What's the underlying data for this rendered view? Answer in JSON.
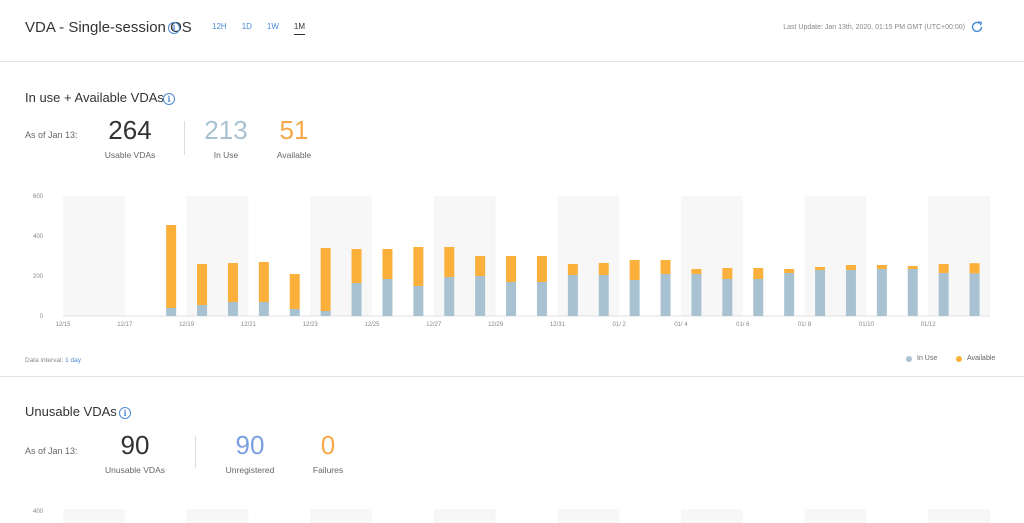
{
  "header": {
    "title": "VDA - Single-session OS",
    "tabs": [
      {
        "label": "12H",
        "active": false
      },
      {
        "label": "1D",
        "active": false
      },
      {
        "label": "1W",
        "active": false
      },
      {
        "label": "1M",
        "active": true
      }
    ],
    "last_update": "Last Update: Jan 13th, 2020, 01:15 PM GMT (UTC+00:00)"
  },
  "section1": {
    "title": "In use + Available VDAs",
    "as_of": "As of Jan 13:",
    "metrics": [
      {
        "value": "264",
        "label": "Usable VDAs",
        "color": "#333333"
      },
      {
        "value": "213",
        "label": "In Use",
        "color": "#a9c2d2"
      },
      {
        "value": "51",
        "label": "Available",
        "color": "#f5a94a"
      }
    ],
    "data_interval_label": "Data interval:",
    "data_interval_value": "1 day",
    "legend": [
      {
        "label": "In Use",
        "color": "#a9c2d2"
      },
      {
        "label": "Available",
        "color": "#fbb03b"
      }
    ]
  },
  "section2": {
    "title": "Unusable VDAs",
    "as_of": "As of Jan 13:",
    "metrics": [
      {
        "value": "90",
        "label": "Unusable VDAs",
        "color": "#333333"
      },
      {
        "value": "90",
        "label": "Unregistered",
        "color": "#7b9fe0"
      },
      {
        "value": "0",
        "label": "Failures",
        "color": "#f5a94a"
      }
    ],
    "y_tick_top": "400"
  },
  "chart_data": {
    "type": "bar",
    "stacked": true,
    "categories": [
      "12/15",
      "12/16",
      "12/17",
      "12/18",
      "12/19",
      "12/20",
      "12/21",
      "12/22",
      "12/23",
      "12/24",
      "12/25",
      "12/26",
      "12/27",
      "12/28",
      "12/29",
      "12/30",
      "12/31",
      "01/1",
      "01/2",
      "01/3",
      "01/4",
      "01/5",
      "01/6",
      "01/7",
      "01/8",
      "01/9",
      "01/10",
      "01/11",
      "01/12",
      "01/13"
    ],
    "x_tick_labels": [
      "12/15",
      "12/17",
      "12/19",
      "12/21",
      "12/23",
      "12/25",
      "12/27",
      "12/29",
      "12/31",
      "01/ 2",
      "01/ 4",
      "01/ 6",
      "01/ 8",
      "01/10",
      "01/12"
    ],
    "series": [
      {
        "name": "In Use",
        "color": "#a9c2d2",
        "values": [
          0,
          0,
          0,
          40,
          55,
          70,
          70,
          35,
          25,
          165,
          185,
          150,
          195,
          200,
          170,
          170,
          205,
          205,
          180,
          210,
          210,
          185,
          185,
          215,
          230,
          230,
          235,
          235,
          215,
          213
        ]
      },
      {
        "name": "Available",
        "color": "#fbb03b",
        "values": [
          0,
          0,
          0,
          415,
          205,
          195,
          200,
          175,
          315,
          170,
          150,
          195,
          150,
          100,
          130,
          130,
          55,
          60,
          100,
          70,
          25,
          55,
          55,
          20,
          15,
          25,
          20,
          15,
          45,
          51
        ]
      }
    ],
    "ylim": [
      0,
      600
    ],
    "y_ticks": [
      0,
      200,
      400,
      600
    ],
    "grid": false
  }
}
